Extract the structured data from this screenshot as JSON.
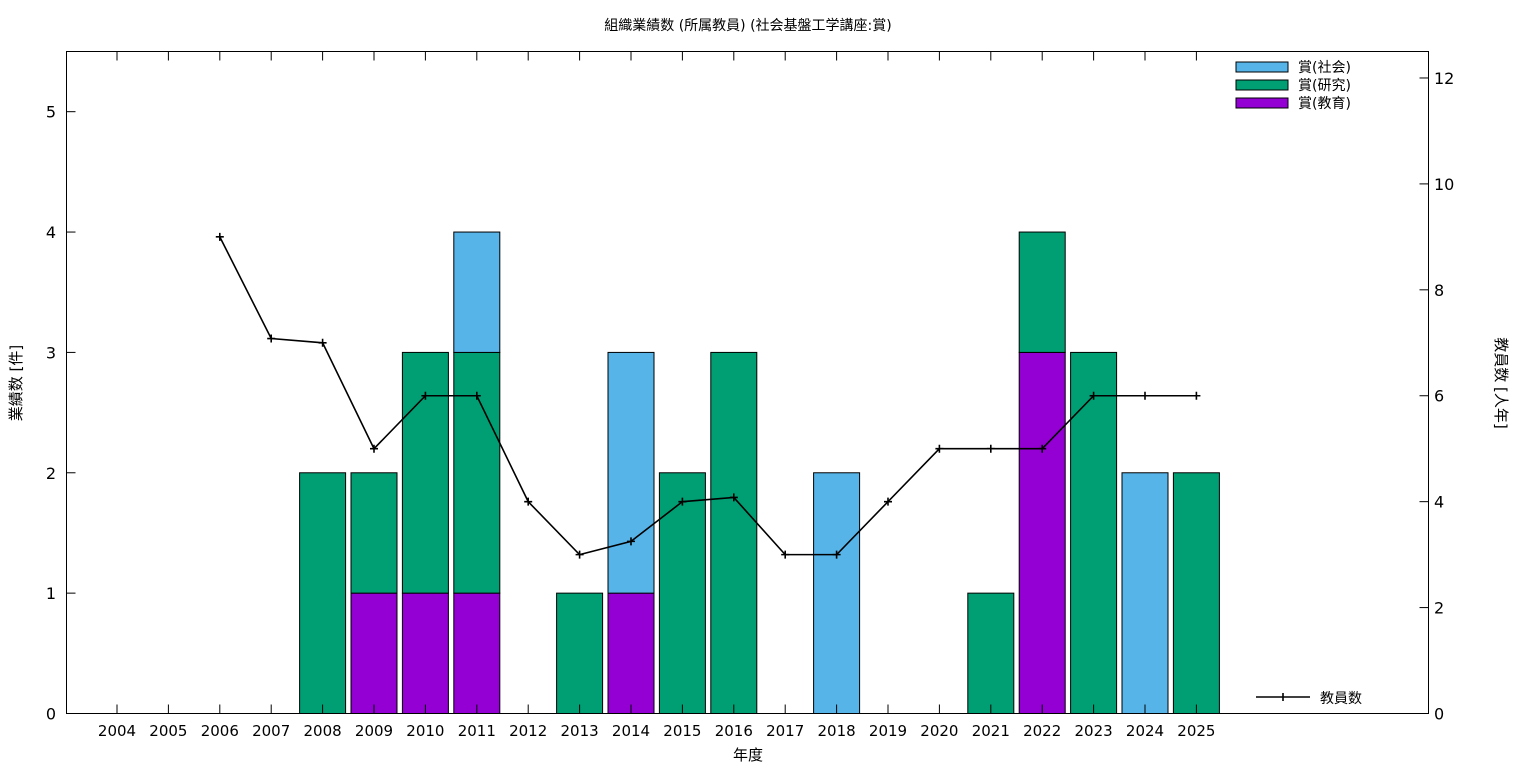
{
  "chart_data": {
    "type": "bar",
    "title": "組織業績数 (所属教員) (社会基盤工学講座:賞)",
    "xlabel": "年度",
    "ylabel": "業績数 [件]",
    "y2label": "教員数 [人年]",
    "ylim": [
      0,
      5.5
    ],
    "y2lim": [
      0,
      12.5
    ],
    "yticks": [
      0,
      1,
      2,
      3,
      4,
      5
    ],
    "y2ticks": [
      0,
      2,
      4,
      6,
      8,
      10,
      12
    ],
    "stacked": true,
    "categories": [
      "2004",
      "2005",
      "2006",
      "2007",
      "2008",
      "2009",
      "2010",
      "2011",
      "2012",
      "2013",
      "2014",
      "2015",
      "2016",
      "2017",
      "2018",
      "2019",
      "2020",
      "2021",
      "2022",
      "2023",
      "2024",
      "2025"
    ],
    "series": [
      {
        "name": "賞(教育)",
        "color": "#9400d3",
        "values": [
          0,
          0,
          0,
          0,
          0,
          1,
          1,
          1,
          0,
          0,
          1,
          0,
          0,
          0,
          0,
          0,
          0,
          0,
          3,
          0,
          0,
          0
        ]
      },
      {
        "name": "賞(研究)",
        "color": "#009e73",
        "values": [
          0,
          0,
          0,
          0,
          2,
          1,
          2,
          2,
          0,
          1,
          0,
          2,
          3,
          0,
          0,
          0,
          0,
          1,
          1,
          3,
          0,
          2
        ]
      },
      {
        "name": "賞(社会)",
        "color": "#56b4e9",
        "values": [
          0,
          0,
          0,
          0,
          0,
          0,
          0,
          1,
          0,
          0,
          2,
          0,
          0,
          0,
          2,
          0,
          0,
          0,
          0,
          0,
          2,
          0
        ]
      }
    ],
    "legend_order": [
      "賞(社会)",
      "賞(研究)",
      "賞(教育)"
    ],
    "legend_position": "top-right",
    "line_series": {
      "name": "教員数",
      "axis": "y2",
      "color": "#000000",
      "marker": "+",
      "legend_position": "bottom-right",
      "points": [
        {
          "x": "2006",
          "y": 9.0
        },
        {
          "x": "2007",
          "y": 7.08
        },
        {
          "x": "2008",
          "y": 7.0
        },
        {
          "x": "2009",
          "y": 5.0
        },
        {
          "x": "2010",
          "y": 6.0
        },
        {
          "x": "2011",
          "y": 6.0
        },
        {
          "x": "2012",
          "y": 4.0
        },
        {
          "x": "2013",
          "y": 3.0
        },
        {
          "x": "2014",
          "y": 3.25
        },
        {
          "x": "2015",
          "y": 4.0
        },
        {
          "x": "2016",
          "y": 4.08
        },
        {
          "x": "2017",
          "y": 3.0
        },
        {
          "x": "2018",
          "y": 3.0
        },
        {
          "x": "2019",
          "y": 4.0
        },
        {
          "x": "2020",
          "y": 5.0
        },
        {
          "x": "2021",
          "y": 5.0
        },
        {
          "x": "2022",
          "y": 5.0
        },
        {
          "x": "2023",
          "y": 6.0
        },
        {
          "x": "2024",
          "y": 6.0
        },
        {
          "x": "2025",
          "y": 6.0
        }
      ]
    }
  }
}
